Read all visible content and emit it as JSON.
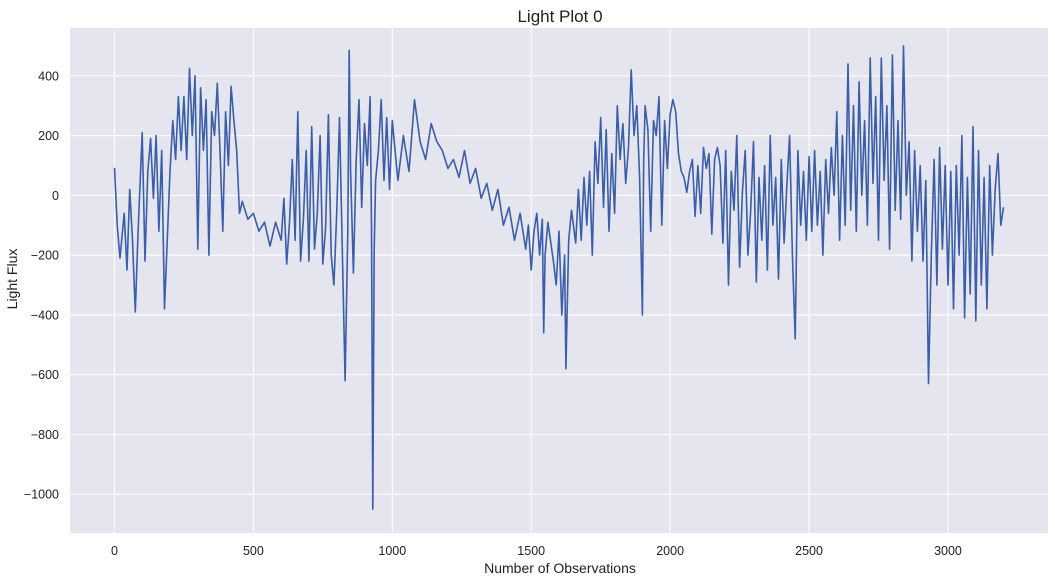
{
  "chart_data": {
    "type": "line",
    "title": "Light Plot 0",
    "xlabel": "Number of Observations",
    "ylabel": "Light Flux",
    "xlim": [
      -160,
      3360
    ],
    "ylim": [
      -1130,
      560
    ],
    "x_ticks": [
      0,
      500,
      1000,
      1500,
      2000,
      2500,
      3000
    ],
    "y_ticks": [
      -1000,
      -800,
      -600,
      -400,
      -200,
      0,
      200,
      400
    ],
    "grid": true,
    "style": {
      "background": "#e5e5f0",
      "grid_color": "#ffffff",
      "line_color": "#3a5ea8"
    },
    "series": [
      {
        "color": "#3a5ea8",
        "points": [
          [
            0,
            92
          ],
          [
            10,
            -100
          ],
          [
            20,
            -210
          ],
          [
            35,
            -60
          ],
          [
            45,
            -250
          ],
          [
            55,
            20
          ],
          [
            65,
            -150
          ],
          [
            75,
            -390
          ],
          [
            85,
            -120
          ],
          [
            100,
            210
          ],
          [
            110,
            -220
          ],
          [
            120,
            80
          ],
          [
            130,
            190
          ],
          [
            140,
            -10
          ],
          [
            150,
            200
          ],
          [
            160,
            -120
          ],
          [
            170,
            150
          ],
          [
            180,
            -380
          ],
          [
            200,
            80
          ],
          [
            210,
            250
          ],
          [
            220,
            120
          ],
          [
            230,
            330
          ],
          [
            240,
            150
          ],
          [
            250,
            330
          ],
          [
            260,
            120
          ],
          [
            270,
            425
          ],
          [
            280,
            200
          ],
          [
            290,
            400
          ],
          [
            300,
            -180
          ],
          [
            310,
            360
          ],
          [
            320,
            150
          ],
          [
            330,
            320
          ],
          [
            340,
            -200
          ],
          [
            350,
            280
          ],
          [
            360,
            200
          ],
          [
            370,
            375
          ],
          [
            380,
            150
          ],
          [
            390,
            -120
          ],
          [
            400,
            280
          ],
          [
            410,
            100
          ],
          [
            420,
            365
          ],
          [
            430,
            250
          ],
          [
            440,
            150
          ],
          [
            450,
            -60
          ],
          [
            460,
            -20
          ],
          [
            480,
            -80
          ],
          [
            500,
            -60
          ],
          [
            520,
            -120
          ],
          [
            540,
            -90
          ],
          [
            560,
            -170
          ],
          [
            580,
            -90
          ],
          [
            600,
            -150
          ],
          [
            610,
            -10
          ],
          [
            620,
            -230
          ],
          [
            630,
            -90
          ],
          [
            640,
            120
          ],
          [
            650,
            -150
          ],
          [
            660,
            280
          ],
          [
            670,
            -220
          ],
          [
            680,
            -80
          ],
          [
            690,
            150
          ],
          [
            700,
            -220
          ],
          [
            710,
            230
          ],
          [
            720,
            -180
          ],
          [
            730,
            -60
          ],
          [
            740,
            200
          ],
          [
            750,
            -230
          ],
          [
            760,
            -110
          ],
          [
            770,
            270
          ],
          [
            780,
            -200
          ],
          [
            790,
            -300
          ],
          [
            800,
            -60
          ],
          [
            810,
            260
          ],
          [
            820,
            -180
          ],
          [
            830,
            -620
          ],
          [
            840,
            -120
          ],
          [
            845,
            485
          ],
          [
            850,
            80
          ],
          [
            860,
            -260
          ],
          [
            870,
            120
          ],
          [
            880,
            320
          ],
          [
            890,
            -40
          ],
          [
            900,
            240
          ],
          [
            910,
            100
          ],
          [
            920,
            330
          ],
          [
            925,
            -100
          ],
          [
            930,
            -1050
          ],
          [
            935,
            -180
          ],
          [
            940,
            50
          ],
          [
            950,
            150
          ],
          [
            960,
            320
          ],
          [
            970,
            50
          ],
          [
            980,
            260
          ],
          [
            990,
            20
          ],
          [
            1000,
            250
          ],
          [
            1020,
            50
          ],
          [
            1040,
            200
          ],
          [
            1060,
            80
          ],
          [
            1080,
            320
          ],
          [
            1100,
            180
          ],
          [
            1120,
            120
          ],
          [
            1140,
            240
          ],
          [
            1160,
            180
          ],
          [
            1180,
            150
          ],
          [
            1200,
            90
          ],
          [
            1220,
            120
          ],
          [
            1240,
            60
          ],
          [
            1260,
            150
          ],
          [
            1280,
            40
          ],
          [
            1300,
            90
          ],
          [
            1320,
            -10
          ],
          [
            1340,
            40
          ],
          [
            1360,
            -50
          ],
          [
            1380,
            20
          ],
          [
            1400,
            -100
          ],
          [
            1420,
            -40
          ],
          [
            1440,
            -150
          ],
          [
            1460,
            -60
          ],
          [
            1480,
            -180
          ],
          [
            1490,
            -100
          ],
          [
            1500,
            -250
          ],
          [
            1510,
            -120
          ],
          [
            1520,
            -60
          ],
          [
            1530,
            -200
          ],
          [
            1540,
            -80
          ],
          [
            1545,
            -460
          ],
          [
            1550,
            -200
          ],
          [
            1560,
            -90
          ],
          [
            1580,
            -220
          ],
          [
            1590,
            -300
          ],
          [
            1600,
            -120
          ],
          [
            1610,
            -400
          ],
          [
            1620,
            -200
          ],
          [
            1625,
            -580
          ],
          [
            1635,
            -150
          ],
          [
            1645,
            -50
          ],
          [
            1660,
            -160
          ],
          [
            1670,
            20
          ],
          [
            1680,
            -150
          ],
          [
            1690,
            60
          ],
          [
            1700,
            -100
          ],
          [
            1710,
            80
          ],
          [
            1720,
            -200
          ],
          [
            1730,
            180
          ],
          [
            1740,
            40
          ],
          [
            1750,
            260
          ],
          [
            1760,
            -40
          ],
          [
            1770,
            220
          ],
          [
            1780,
            -120
          ],
          [
            1790,
            140
          ],
          [
            1800,
            -60
          ],
          [
            1810,
            300
          ],
          [
            1820,
            120
          ],
          [
            1830,
            240
          ],
          [
            1840,
            40
          ],
          [
            1850,
            160
          ],
          [
            1860,
            420
          ],
          [
            1870,
            200
          ],
          [
            1880,
            300
          ],
          [
            1890,
            60
          ],
          [
            1900,
            -400
          ],
          [
            1905,
            120
          ],
          [
            1910,
            300
          ],
          [
            1920,
            220
          ],
          [
            1930,
            -120
          ],
          [
            1940,
            250
          ],
          [
            1950,
            200
          ],
          [
            1960,
            330
          ],
          [
            1970,
            -100
          ],
          [
            1980,
            250
          ],
          [
            1990,
            90
          ],
          [
            2000,
            270
          ],
          [
            2010,
            320
          ],
          [
            2020,
            280
          ],
          [
            2030,
            140
          ],
          [
            2040,
            80
          ],
          [
            2050,
            60
          ],
          [
            2060,
            10
          ],
          [
            2070,
            80
          ],
          [
            2080,
            120
          ],
          [
            2090,
            -70
          ],
          [
            2100,
            100
          ],
          [
            2110,
            -60
          ],
          [
            2120,
            160
          ],
          [
            2130,
            90
          ],
          [
            2140,
            140
          ],
          [
            2150,
            -130
          ],
          [
            2160,
            120
          ],
          [
            2170,
            160
          ],
          [
            2180,
            100
          ],
          [
            2190,
            -160
          ],
          [
            2200,
            150
          ],
          [
            2210,
            -300
          ],
          [
            2220,
            80
          ],
          [
            2230,
            -50
          ],
          [
            2240,
            200
          ],
          [
            2250,
            -240
          ],
          [
            2260,
            10
          ],
          [
            2270,
            150
          ],
          [
            2280,
            -200
          ],
          [
            2290,
            -50
          ],
          [
            2300,
            180
          ],
          [
            2310,
            -290
          ],
          [
            2320,
            60
          ],
          [
            2330,
            -150
          ],
          [
            2340,
            100
          ],
          [
            2350,
            -250
          ],
          [
            2360,
            200
          ],
          [
            2370,
            -100
          ],
          [
            2380,
            60
          ],
          [
            2390,
            -280
          ],
          [
            2400,
            120
          ],
          [
            2410,
            -160
          ],
          [
            2420,
            30
          ],
          [
            2430,
            200
          ],
          [
            2440,
            -200
          ],
          [
            2450,
            -480
          ],
          [
            2460,
            150
          ],
          [
            2470,
            -100
          ],
          [
            2480,
            80
          ],
          [
            2490,
            -150
          ],
          [
            2500,
            130
          ],
          [
            2510,
            -120
          ],
          [
            2520,
            150
          ],
          [
            2530,
            -100
          ],
          [
            2540,
            80
          ],
          [
            2550,
            -200
          ],
          [
            2560,
            120
          ],
          [
            2570,
            -60
          ],
          [
            2580,
            160
          ],
          [
            2590,
            0
          ],
          [
            2600,
            280
          ],
          [
            2610,
            -150
          ],
          [
            2620,
            200
          ],
          [
            2630,
            -100
          ],
          [
            2640,
            440
          ],
          [
            2650,
            -50
          ],
          [
            2660,
            300
          ],
          [
            2670,
            -120
          ],
          [
            2680,
            380
          ],
          [
            2690,
            0
          ],
          [
            2700,
            250
          ],
          [
            2710,
            -100
          ],
          [
            2720,
            460
          ],
          [
            2730,
            40
          ],
          [
            2740,
            330
          ],
          [
            2750,
            -150
          ],
          [
            2760,
            460
          ],
          [
            2770,
            50
          ],
          [
            2780,
            300
          ],
          [
            2790,
            -180
          ],
          [
            2800,
            470
          ],
          [
            2810,
            -50
          ],
          [
            2820,
            250
          ],
          [
            2830,
            -80
          ],
          [
            2840,
            500
          ],
          [
            2850,
            0
          ],
          [
            2860,
            180
          ],
          [
            2870,
            -220
          ],
          [
            2880,
            150
          ],
          [
            2890,
            -120
          ],
          [
            2900,
            100
          ],
          [
            2910,
            -220
          ],
          [
            2920,
            50
          ],
          [
            2930,
            -630
          ],
          [
            2940,
            -200
          ],
          [
            2950,
            120
          ],
          [
            2960,
            -300
          ],
          [
            2970,
            160
          ],
          [
            2980,
            -180
          ],
          [
            2990,
            100
          ],
          [
            3000,
            -300
          ],
          [
            3010,
            80
          ],
          [
            3020,
            -380
          ],
          [
            3030,
            100
          ],
          [
            3040,
            -200
          ],
          [
            3050,
            200
          ],
          [
            3060,
            -410
          ],
          [
            3070,
            60
          ],
          [
            3080,
            -330
          ],
          [
            3090,
            230
          ],
          [
            3100,
            -420
          ],
          [
            3110,
            150
          ],
          [
            3120,
            -300
          ],
          [
            3130,
            60
          ],
          [
            3140,
            -380
          ],
          [
            3150,
            100
          ],
          [
            3160,
            -200
          ],
          [
            3170,
            20
          ],
          [
            3180,
            140
          ],
          [
            3190,
            -100
          ],
          [
            3200,
            -40
          ]
        ]
      }
    ]
  }
}
